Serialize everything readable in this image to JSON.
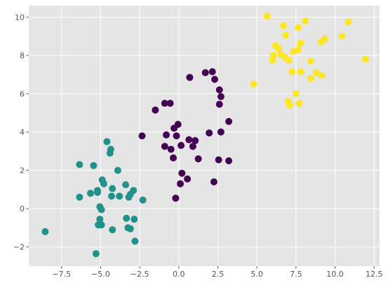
{
  "chart_data": {
    "type": "scatter",
    "title": "",
    "xlabel": "",
    "ylabel": "",
    "xlim": [
      -9.6,
      12.85
    ],
    "ylim": [
      -3.0,
      10.6
    ],
    "x_ticks": [
      -7.5,
      -5.0,
      -2.5,
      0.0,
      2.5,
      5.0,
      7.5,
      10.0,
      12.5
    ],
    "x_tick_labels": [
      "−7.5",
      "−5.0",
      "−2.5",
      "0.0",
      "2.5",
      "5.0",
      "7.5",
      "10.0",
      "12.5"
    ],
    "y_ticks": [
      -2,
      0,
      2,
      4,
      6,
      8,
      10
    ],
    "y_tick_labels": [
      "−2",
      "0",
      "2",
      "4",
      "6",
      "8",
      "10"
    ],
    "grid": true,
    "style": "ggplot",
    "background_color": "#e5e5e5",
    "grid_color": "#ffffff",
    "series": [
      {
        "color": "#440154",
        "points": [
          [
            0.7,
            6.85
          ],
          [
            1.7,
            7.1
          ],
          [
            2.15,
            7.15
          ],
          [
            2.3,
            6.75
          ],
          [
            2.6,
            6.2
          ],
          [
            2.7,
            5.85
          ],
          [
            2.6,
            5.45
          ],
          [
            -1.5,
            5.15
          ],
          [
            -0.9,
            5.5
          ],
          [
            -0.55,
            5.5
          ],
          [
            3.2,
            4.55
          ],
          [
            -0.3,
            4.2
          ],
          [
            -0.05,
            4.4
          ],
          [
            -2.35,
            3.8
          ],
          [
            -0.8,
            3.85
          ],
          [
            -0.15,
            3.8
          ],
          [
            0.65,
            3.6
          ],
          [
            1.05,
            3.55
          ],
          [
            1.95,
            3.95
          ],
          [
            2.7,
            4.0
          ],
          [
            -0.9,
            3.25
          ],
          [
            -0.5,
            3.1
          ],
          [
            0.15,
            3.3
          ],
          [
            0.9,
            3.25
          ],
          [
            -0.35,
            2.65
          ],
          [
            1.25,
            2.6
          ],
          [
            2.55,
            2.55
          ],
          [
            3.2,
            2.5
          ],
          [
            0.2,
            1.85
          ],
          [
            0.55,
            1.55
          ],
          [
            0.1,
            1.3
          ],
          [
            2.25,
            1.4
          ],
          [
            -0.2,
            0.55
          ]
        ]
      },
      {
        "color": "#21918c",
        "points": [
          [
            -4.6,
            3.5
          ],
          [
            -4.35,
            3.1
          ],
          [
            -4.4,
            2.9
          ],
          [
            -6.35,
            2.3
          ],
          [
            -5.45,
            2.25
          ],
          [
            -3.9,
            2.0
          ],
          [
            -4.9,
            1.5
          ],
          [
            -4.8,
            1.3
          ],
          [
            -3.4,
            1.25
          ],
          [
            -4.25,
            1.05
          ],
          [
            -2.9,
            0.95
          ],
          [
            -5.2,
            0.95
          ],
          [
            -5.65,
            0.8
          ],
          [
            -5.2,
            0.85
          ],
          [
            -4.3,
            0.65
          ],
          [
            -3.8,
            0.65
          ],
          [
            -3.2,
            0.6
          ],
          [
            -3.1,
            0.75
          ],
          [
            -6.35,
            0.6
          ],
          [
            -2.3,
            0.45
          ],
          [
            -5.05,
            0.1
          ],
          [
            -4.95,
            -0.05
          ],
          [
            -5.05,
            -0.55
          ],
          [
            -3.35,
            -0.5
          ],
          [
            -2.85,
            -0.55
          ],
          [
            -5.15,
            -0.85
          ],
          [
            -4.95,
            -0.85
          ],
          [
            -3.25,
            -1.0
          ],
          [
            -3.1,
            -1.05
          ],
          [
            -4.25,
            -1.1
          ],
          [
            -8.55,
            -1.2
          ],
          [
            -2.8,
            -1.7
          ],
          [
            -5.3,
            -2.35
          ]
        ]
      },
      {
        "color": "#fde725",
        "points": [
          [
            5.65,
            10.05
          ],
          [
            6.7,
            9.55
          ],
          [
            7.65,
            9.45
          ],
          [
            8.1,
            9.8
          ],
          [
            10.85,
            9.75
          ],
          [
            6.85,
            9.05
          ],
          [
            9.35,
            8.85
          ],
          [
            9.1,
            8.7
          ],
          [
            10.45,
            9.0
          ],
          [
            6.2,
            8.5
          ],
          [
            6.4,
            8.35
          ],
          [
            7.8,
            8.65
          ],
          [
            7.65,
            8.3
          ],
          [
            7.35,
            8.2
          ],
          [
            6.05,
            8.0
          ],
          [
            6.55,
            8.05
          ],
          [
            6.8,
            7.9
          ],
          [
            7.05,
            7.75
          ],
          [
            6.0,
            7.75
          ],
          [
            8.45,
            7.7
          ],
          [
            11.95,
            7.8
          ],
          [
            7.25,
            7.15
          ],
          [
            7.8,
            7.15
          ],
          [
            8.8,
            7.1
          ],
          [
            9.15,
            6.95
          ],
          [
            8.45,
            6.8
          ],
          [
            4.8,
            6.5
          ],
          [
            7.5,
            6.0
          ],
          [
            7.0,
            5.6
          ],
          [
            7.1,
            5.4
          ],
          [
            7.7,
            5.5
          ]
        ]
      }
    ]
  }
}
